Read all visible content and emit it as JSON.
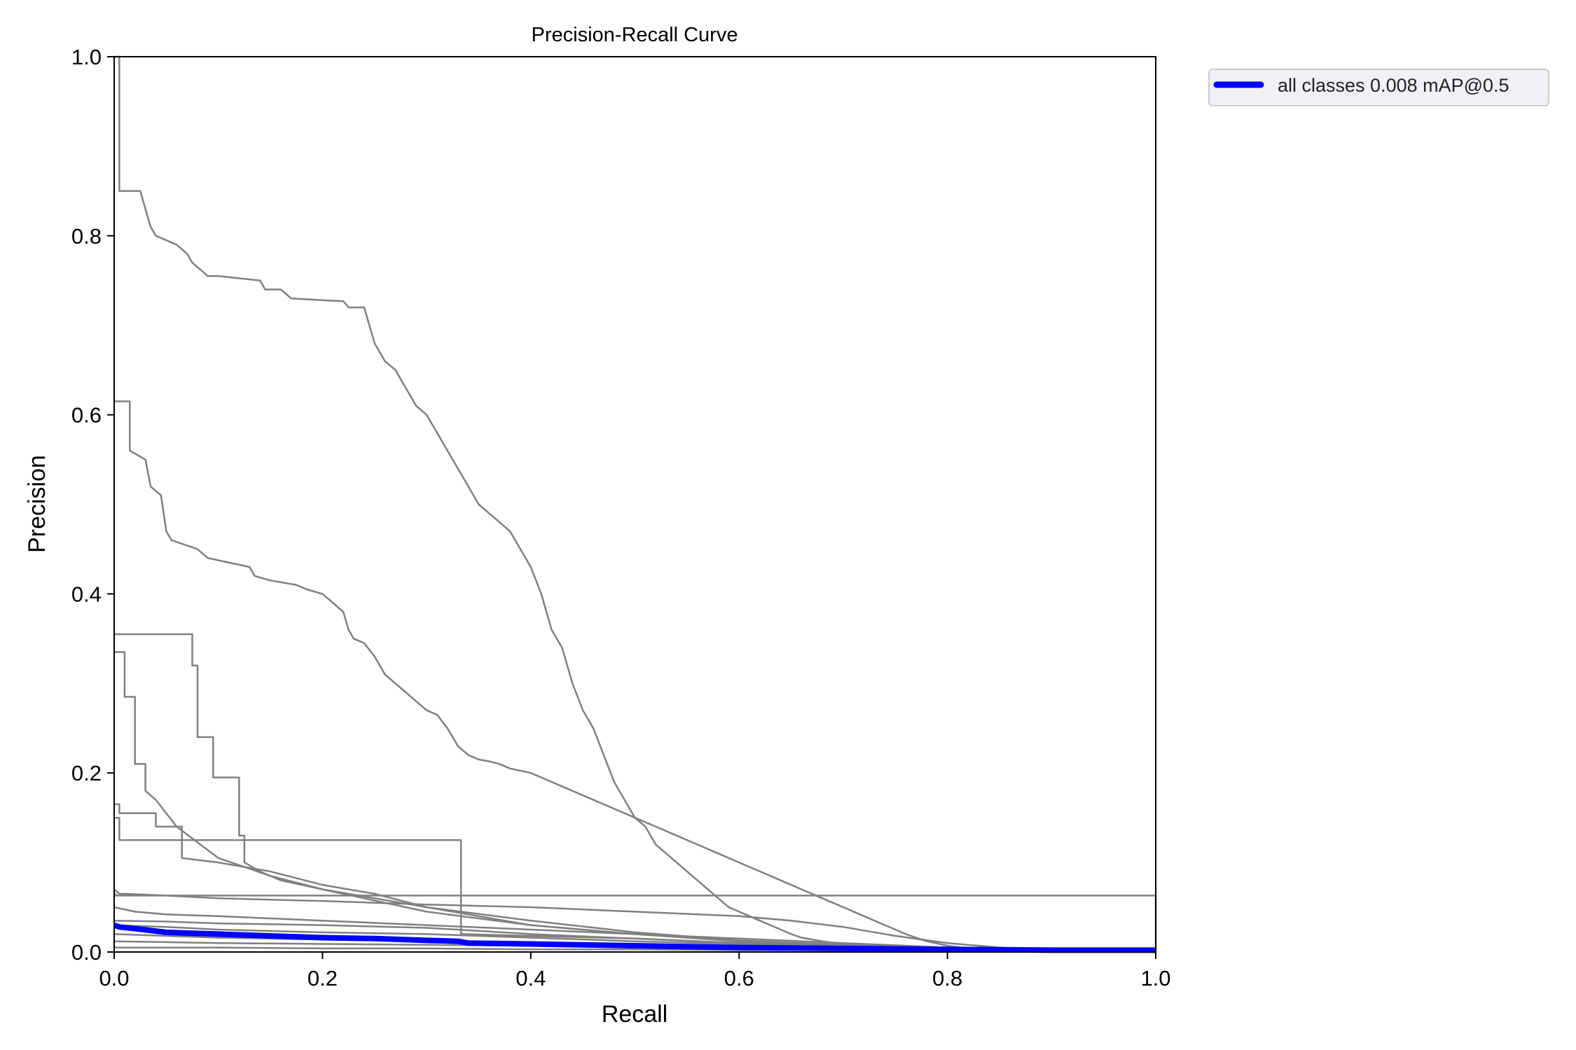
{
  "chart_data": {
    "type": "line",
    "title": "Precision-Recall Curve",
    "xlabel": "Recall",
    "ylabel": "Precision",
    "xlim": [
      0.0,
      1.0
    ],
    "ylim": [
      0.0,
      1.0
    ],
    "xticks": [
      "0.0",
      "0.2",
      "0.4",
      "0.6",
      "0.8",
      "1.0"
    ],
    "yticks": [
      "0.0",
      "0.2",
      "0.4",
      "0.6",
      "0.8",
      "1.0"
    ],
    "grid": false,
    "legend_position": "outside top-right",
    "legend": [
      {
        "label": "all classes 0.008 mAP@0.5",
        "color": "#0000ff"
      }
    ],
    "colors": {
      "class_curves": "#808080",
      "mean_curve": "#0000ff"
    },
    "series": [
      {
        "x": [
          0,
          0.005,
          0.005,
          0.025,
          0.03,
          0.035,
          0.04,
          0.05,
          0.06,
          0.07,
          0.075,
          0.09,
          0.1,
          0.14,
          0.145,
          0.16,
          0.17,
          0.2,
          0.22,
          0.225,
          0.24,
          0.245,
          0.25,
          0.255,
          0.26,
          0.27,
          0.275,
          0.28,
          0.29,
          0.3,
          0.31,
          0.32,
          0.33,
          0.34,
          0.35,
          0.36,
          0.37,
          0.38,
          0.39,
          0.4,
          0.41,
          0.42,
          0.43,
          0.44,
          0.45,
          0.46,
          0.47,
          0.48,
          0.49,
          0.5,
          0.51,
          0.52,
          0.53,
          0.54,
          0.55,
          0.56,
          0.57,
          0.58,
          0.59,
          0.6,
          0.61,
          0.62,
          0.63,
          0.64,
          0.65,
          0.66,
          0.68,
          0.7,
          0.72,
          0.74,
          0.76,
          0.78,
          0.8,
          0.82,
          0.85,
          0.9,
          0.95,
          1.0
        ],
        "y": [
          1.0,
          1.0,
          0.85,
          0.85,
          0.83,
          0.81,
          0.8,
          0.795,
          0.79,
          0.78,
          0.77,
          0.755,
          0.755,
          0.75,
          0.74,
          0.74,
          0.73,
          0.728,
          0.727,
          0.72,
          0.72,
          0.7,
          0.68,
          0.67,
          0.66,
          0.65,
          0.64,
          0.63,
          0.61,
          0.6,
          0.58,
          0.56,
          0.54,
          0.52,
          0.5,
          0.49,
          0.48,
          0.47,
          0.45,
          0.43,
          0.4,
          0.36,
          0.34,
          0.3,
          0.27,
          0.25,
          0.22,
          0.19,
          0.17,
          0.15,
          0.14,
          0.12,
          0.11,
          0.1,
          0.09,
          0.08,
          0.07,
          0.06,
          0.05,
          0.045,
          0.04,
          0.035,
          0.03,
          0.025,
          0.02,
          0.016,
          0.012,
          0.009,
          0.006,
          0.004,
          0.003,
          0.002,
          0.0015,
          0.001,
          0.001,
          0.001,
          0.001,
          0.001
        ]
      },
      {
        "x": [
          0,
          0.015,
          0.015,
          0.03,
          0.035,
          0.045,
          0.05,
          0.055,
          0.08,
          0.09,
          0.11,
          0.13,
          0.135,
          0.15,
          0.175,
          0.185,
          0.2,
          0.21,
          0.22,
          0.225,
          0.23,
          0.24,
          0.25,
          0.26,
          0.27,
          0.28,
          0.29,
          0.3,
          0.31,
          0.32,
          0.33,
          0.34,
          0.35,
          0.36,
          0.37,
          0.38,
          0.4,
          0.42,
          0.44,
          0.46,
          0.48,
          0.5,
          0.52,
          0.54,
          0.56,
          0.58,
          0.6,
          0.62,
          0.64,
          0.66,
          0.68,
          0.7,
          0.72,
          0.74,
          0.76,
          0.78,
          0.8,
          0.82,
          0.85,
          0.9,
          0.95,
          1.0
        ],
        "y": [
          0.615,
          0.615,
          0.56,
          0.55,
          0.52,
          0.51,
          0.47,
          0.46,
          0.45,
          0.44,
          0.435,
          0.43,
          0.42,
          0.415,
          0.41,
          0.405,
          0.4,
          0.39,
          0.38,
          0.36,
          0.35,
          0.345,
          0.33,
          0.31,
          0.3,
          0.29,
          0.28,
          0.27,
          0.265,
          0.25,
          0.23,
          0.22,
          0.215,
          0.213,
          0.21,
          0.205,
          0.2,
          0.19,
          0.18,
          0.17,
          0.16,
          0.15,
          0.14,
          0.13,
          0.12,
          0.11,
          0.1,
          0.09,
          0.08,
          0.07,
          0.06,
          0.05,
          0.04,
          0.03,
          0.02,
          0.012,
          0.007,
          0.004,
          0.002,
          0.001,
          0.001,
          0.001
        ]
      },
      {
        "x": [
          0,
          0.075,
          0.075,
          0.08,
          0.08,
          0.095,
          0.095,
          0.12,
          0.12,
          0.125,
          0.125,
          0.14,
          0.16,
          0.2,
          0.24,
          0.3,
          0.4,
          0.5,
          0.6,
          0.7,
          0.8,
          0.9,
          1.0
        ],
        "y": [
          0.355,
          0.355,
          0.32,
          0.32,
          0.24,
          0.24,
          0.195,
          0.195,
          0.13,
          0.13,
          0.1,
          0.09,
          0.08,
          0.07,
          0.06,
          0.045,
          0.03,
          0.02,
          0.012,
          0.007,
          0.003,
          0.001,
          0.001
        ]
      },
      {
        "x": [
          0,
          0.01,
          0.01,
          0.02,
          0.02,
          0.03,
          0.03,
          0.04,
          0.06,
          0.1,
          0.15,
          0.2,
          0.3,
          0.4,
          0.5,
          0.6,
          0.7,
          0.8,
          0.9,
          1.0
        ],
        "y": [
          0.335,
          0.335,
          0.285,
          0.285,
          0.21,
          0.21,
          0.18,
          0.17,
          0.14,
          0.105,
          0.085,
          0.07,
          0.05,
          0.035,
          0.022,
          0.013,
          0.008,
          0.004,
          0.002,
          0.001
        ]
      },
      {
        "x": [
          0,
          0.005,
          0.005,
          0.04,
          0.04,
          0.065,
          0.065,
          0.1,
          0.15,
          0.2,
          0.25,
          0.3,
          0.35,
          0.4,
          0.5,
          0.6,
          0.7,
          0.8,
          0.9,
          1.0
        ],
        "y": [
          0.165,
          0.165,
          0.155,
          0.155,
          0.14,
          0.14,
          0.105,
          0.1,
          0.09,
          0.075,
          0.065,
          0.05,
          0.04,
          0.03,
          0.02,
          0.012,
          0.007,
          0.003,
          0.002,
          0.001
        ]
      },
      {
        "x": [
          0,
          0.005,
          0.005,
          0.333,
          0.333,
          0.5,
          0.6,
          0.7,
          0.8,
          0.9,
          1.0
        ],
        "y": [
          0.15,
          0.15,
          0.125,
          0.125,
          0.02,
          0.015,
          0.01,
          0.006,
          0.003,
          0.001,
          0.001
        ]
      },
      {
        "x": [
          0,
          0.001,
          0.001,
          1.0,
          1.0
        ],
        "y": [
          0.065,
          0.065,
          0.063,
          0.063,
          0.0
        ]
      },
      {
        "x": [
          0,
          0.005,
          0.01,
          0.05,
          0.1,
          0.2,
          0.3,
          0.4,
          0.5,
          0.6,
          0.65,
          0.7,
          0.75,
          0.8,
          0.85,
          0.9,
          1.0
        ],
        "y": [
          0.07,
          0.065,
          0.065,
          0.063,
          0.06,
          0.057,
          0.053,
          0.05,
          0.045,
          0.04,
          0.035,
          0.028,
          0.018,
          0.01,
          0.005,
          0.002,
          0.001
        ]
      },
      {
        "x": [
          0,
          0.02,
          0.05,
          0.1,
          0.2,
          0.3,
          0.4,
          0.5,
          0.6,
          0.7,
          0.8,
          0.9,
          1.0
        ],
        "y": [
          0.05,
          0.045,
          0.042,
          0.04,
          0.035,
          0.03,
          0.025,
          0.02,
          0.015,
          0.01,
          0.005,
          0.002,
          0.001
        ]
      },
      {
        "x": [
          0,
          0.05,
          0.1,
          0.2,
          0.3,
          0.33,
          0.4,
          0.5,
          0.6,
          0.7,
          0.8,
          0.9,
          1.0
        ],
        "y": [
          0.035,
          0.034,
          0.032,
          0.03,
          0.027,
          0.025,
          0.02,
          0.015,
          0.01,
          0.007,
          0.004,
          0.002,
          0.001
        ]
      },
      {
        "x": [
          0,
          0.05,
          0.1,
          0.2,
          0.3,
          0.4,
          0.5,
          0.6,
          0.7,
          0.8,
          0.9,
          1.0
        ],
        "y": [
          0.03,
          0.028,
          0.025,
          0.022,
          0.02,
          0.016,
          0.012,
          0.009,
          0.006,
          0.004,
          0.002,
          0.001
        ]
      },
      {
        "x": [
          0,
          0.05,
          0.1,
          0.2,
          0.3,
          0.4,
          0.5,
          0.6,
          0.7,
          0.8,
          0.9,
          1.0
        ],
        "y": [
          0.02,
          0.018,
          0.016,
          0.014,
          0.012,
          0.01,
          0.008,
          0.006,
          0.004,
          0.003,
          0.002,
          0.001
        ]
      },
      {
        "x": [
          0,
          0.05,
          0.1,
          0.2,
          0.3,
          0.4,
          0.5,
          0.6,
          0.7,
          0.8,
          0.9,
          1.0
        ],
        "y": [
          0.012,
          0.011,
          0.01,
          0.009,
          0.008,
          0.007,
          0.005,
          0.004,
          0.003,
          0.002,
          0.001,
          0.001
        ]
      },
      {
        "x": [
          0,
          0.1,
          0.2,
          0.3,
          0.4,
          0.5,
          0.6,
          0.7,
          0.8,
          0.9,
          1.0
        ],
        "y": [
          0.005,
          0.005,
          0.004,
          0.004,
          0.003,
          0.003,
          0.002,
          0.002,
          0.001,
          0.001,
          0.001
        ]
      },
      {
        "name": "all classes 0.008 mAP@0.5",
        "mean": true,
        "x": [
          0,
          0.005,
          0.02,
          0.05,
          0.1,
          0.15,
          0.2,
          0.25,
          0.3,
          0.33,
          0.34,
          0.4,
          0.5,
          0.6,
          0.7,
          0.8,
          0.9,
          1.0
        ],
        "y": [
          0.03,
          0.028,
          0.026,
          0.022,
          0.02,
          0.018,
          0.016,
          0.015,
          0.013,
          0.012,
          0.01,
          0.009,
          0.007,
          0.005,
          0.004,
          0.003,
          0.002,
          0.002
        ]
      }
    ]
  }
}
